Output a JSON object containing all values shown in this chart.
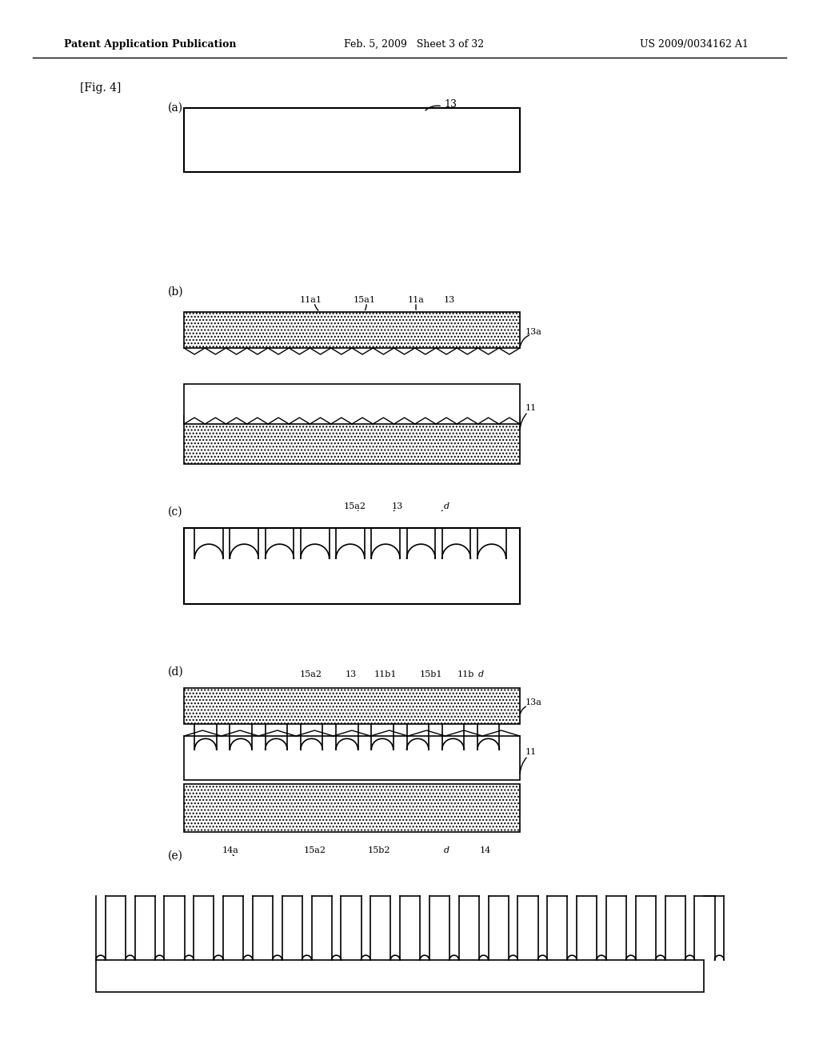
{
  "bg_color": "#ffffff",
  "header_left": "Patent Application Publication",
  "header_mid": "Feb. 5, 2009   Sheet 3 of 32",
  "header_right": "US 2009/0034162 A1",
  "fig_label": "[Fig. 4]",
  "diagrams": [
    "(a)",
    "(b)",
    "(c)",
    "(d)",
    "(e)"
  ],
  "hatch_color": "#aaaaaa",
  "line_color": "#000000"
}
